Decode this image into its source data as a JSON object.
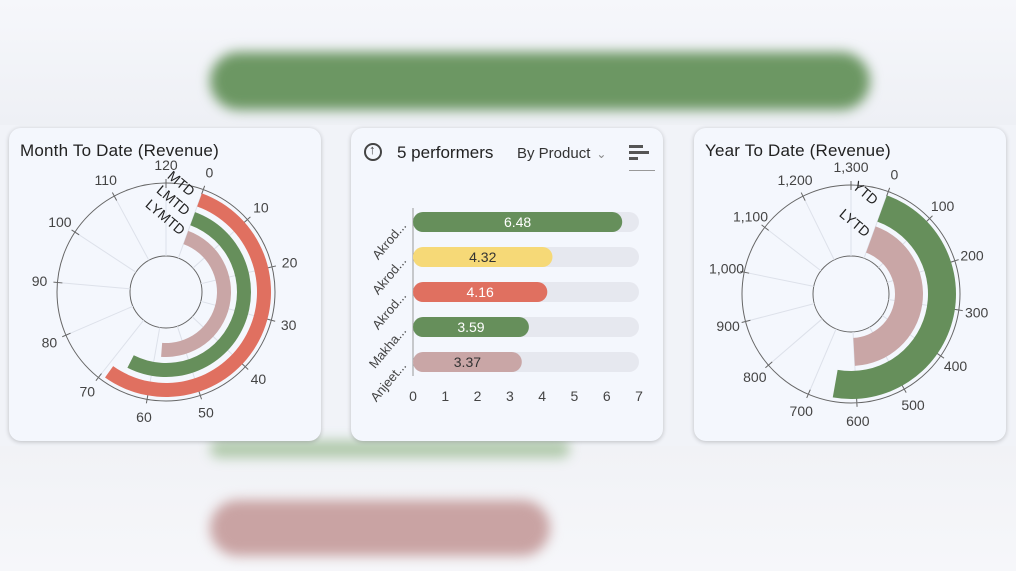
{
  "colors": {
    "mtd": "#e07060",
    "lmtd": "#668f5b",
    "lymtd": "#c9a6a6",
    "ytd": "#668f5b",
    "lytd": "#c9a6a6",
    "bar_green": "#668f5b",
    "bar_yellow": "#f6d977",
    "bar_red": "#e07060",
    "bar_pink": "#c9a6a6",
    "track": "#e6e8ef"
  },
  "mtd_card": {
    "title": "Month To Date (Revenue)"
  },
  "top_card": {
    "title": "5 performers",
    "dropdown": "By Product",
    "dropdown_icon": "chevron-down-icon",
    "left_icon": "arrow-up-circle-icon",
    "right_icon": "bar-sort-icon"
  },
  "ytd_card": {
    "title": "Year To Date (Revenue)"
  },
  "chart_data": [
    {
      "type": "radial-bar",
      "title": "Month To Date (Revenue)",
      "axis": {
        "min": 0,
        "max": 120,
        "ticks": [
          "0",
          "10",
          "20",
          "30",
          "40",
          "50",
          "60",
          "70",
          "80",
          "90",
          "100",
          "110",
          "120"
        ]
      },
      "categories": [
        "MTD",
        "LMTD",
        "LYMTD"
      ],
      "values": [
        69,
        66,
        58
      ]
    },
    {
      "type": "bar",
      "orientation": "horizontal",
      "categories": [
        "Akrod...",
        "Akrod...",
        "Akrod...",
        "Makha...",
        "Anjeet..."
      ],
      "values": [
        6.48,
        4.32,
        4.16,
        3.59,
        3.37
      ],
      "value_labels": [
        "6.48",
        "4.32",
        "4.16",
        "3.59",
        "3.37"
      ],
      "xlim": [
        0,
        7
      ],
      "ticks": [
        "0",
        "1",
        "2",
        "3",
        "4",
        "5",
        "6",
        "7"
      ]
    },
    {
      "type": "radial-bar",
      "title": "Year To Date (Revenue)",
      "axis": {
        "min": 0,
        "max": 1300,
        "ticks": [
          "0",
          "100",
          "200",
          "300",
          "400",
          "500",
          "600",
          "700",
          "800",
          "900",
          "1,000",
          "1,100",
          "1,200",
          "1,300"
        ]
      },
      "categories": [
        "YTD",
        "LYTD"
      ],
      "values": [
        650,
        600
      ]
    }
  ]
}
